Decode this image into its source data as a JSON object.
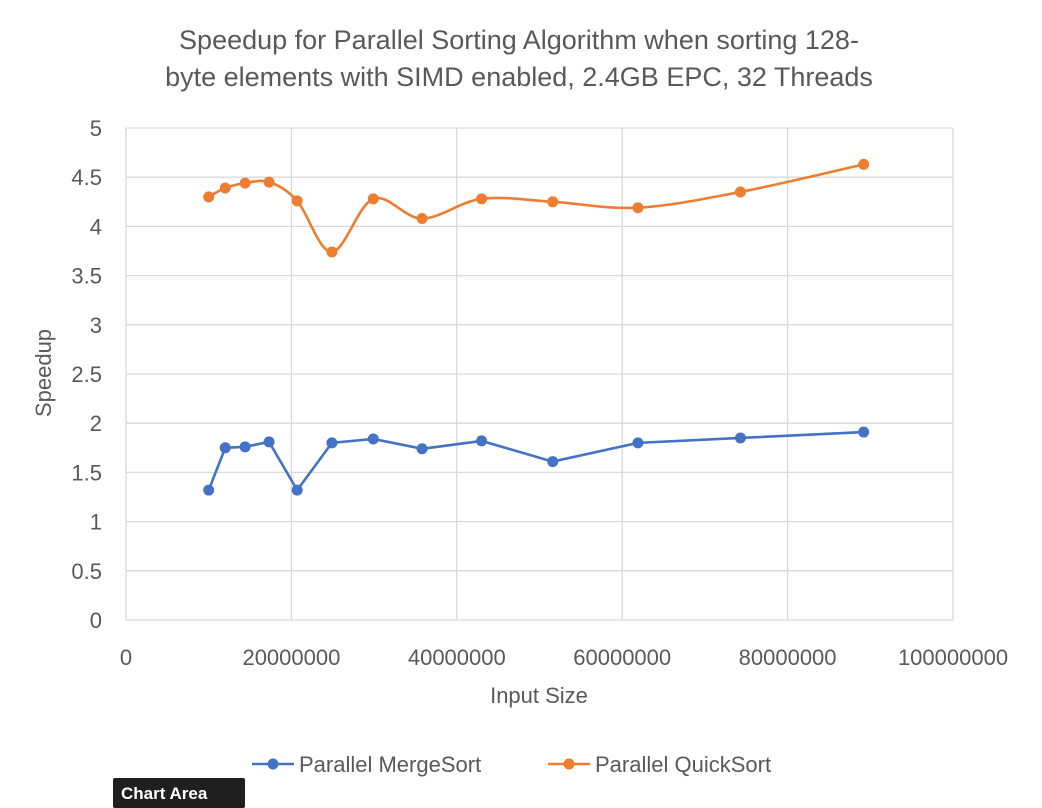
{
  "chart_data": {
    "type": "line",
    "title": [
      "Speedup for Parallel Sorting Algorithm when sorting 128-",
      "byte elements with SIMD enabled, 2.4GB EPC, 32 Threads"
    ],
    "xlabel": "Input Size",
    "ylabel": "Speedup",
    "xlim": [
      0,
      100000000
    ],
    "ylim": [
      0,
      5
    ],
    "x_ticks": [
      0,
      20000000,
      40000000,
      60000000,
      80000000,
      100000000
    ],
    "y_ticks": [
      0,
      0.5,
      1,
      1.5,
      2,
      2.5,
      3,
      3.5,
      4,
      4.5,
      5
    ],
    "grid": true,
    "legend_position": "bottom",
    "series": [
      {
        "name": "Parallel MergeSort",
        "color": "#4472c4",
        "smooth": false,
        "x": [
          10000000,
          12000000,
          14400000,
          17300000,
          20700000,
          24900000,
          29900000,
          35800000,
          43000000,
          51600000,
          61900000,
          74300000,
          89200000
        ],
        "y": [
          1.32,
          1.75,
          1.76,
          1.81,
          1.32,
          1.8,
          1.84,
          1.74,
          1.82,
          1.61,
          1.8,
          1.85,
          1.91
        ]
      },
      {
        "name": "Parallel QuickSort",
        "color": "#ed7d31",
        "smooth": true,
        "x": [
          10000000,
          12000000,
          14400000,
          17300000,
          20700000,
          24900000,
          29900000,
          35800000,
          43000000,
          51600000,
          61900000,
          74300000,
          89200000
        ],
        "y": [
          4.3,
          4.39,
          4.44,
          4.45,
          4.26,
          3.74,
          4.28,
          4.08,
          4.28,
          4.25,
          4.19,
          4.35,
          4.63
        ]
      }
    ]
  },
  "tooltip": {
    "label": "Chart Area"
  }
}
